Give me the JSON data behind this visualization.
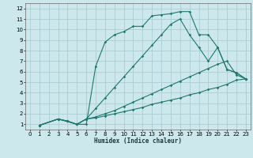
{
  "xlabel": "Humidex (Indice chaleur)",
  "background_color": "#cde8ec",
  "line_color": "#1a7a6e",
  "grid_color": "#aacdd4",
  "xlim": [
    -0.5,
    23.5
  ],
  "ylim": [
    0.5,
    12.5
  ],
  "xticks": [
    0,
    1,
    2,
    3,
    4,
    5,
    6,
    7,
    8,
    9,
    10,
    11,
    12,
    13,
    14,
    15,
    16,
    17,
    18,
    19,
    20,
    21,
    22,
    23
  ],
  "yticks": [
    1,
    2,
    3,
    4,
    5,
    6,
    7,
    8,
    9,
    10,
    11,
    12
  ],
  "lines": [
    {
      "x": [
        1,
        3,
        5,
        6,
        7,
        8,
        9,
        10,
        11,
        12,
        13,
        14,
        15,
        16,
        17,
        18,
        19,
        20,
        21,
        22,
        23
      ],
      "y": [
        0.9,
        1.5,
        1.0,
        1.0,
        6.5,
        8.8,
        9.5,
        9.8,
        10.3,
        10.3,
        11.3,
        11.4,
        11.5,
        11.7,
        11.7,
        9.5,
        9.5,
        8.3,
        6.2,
        5.9,
        5.3
      ]
    },
    {
      "x": [
        1,
        3,
        4,
        5,
        6,
        7,
        8,
        9,
        10,
        11,
        12,
        13,
        14,
        15,
        16,
        17,
        18,
        19,
        20,
        21,
        22,
        23
      ],
      "y": [
        0.9,
        1.5,
        1.3,
        1.0,
        1.5,
        2.5,
        3.5,
        4.5,
        5.5,
        6.5,
        7.5,
        8.5,
        9.5,
        10.5,
        11.0,
        9.5,
        8.3,
        7.0,
        8.3,
        6.2,
        5.9,
        5.3
      ]
    },
    {
      "x": [
        1,
        3,
        4,
        5,
        6,
        7,
        8,
        9,
        10,
        11,
        12,
        13,
        14,
        15,
        16,
        17,
        18,
        19,
        20,
        21,
        22,
        23
      ],
      "y": [
        0.9,
        1.5,
        1.3,
        1.0,
        1.5,
        1.7,
        2.0,
        2.3,
        2.7,
        3.1,
        3.5,
        3.9,
        4.3,
        4.7,
        5.1,
        5.5,
        5.9,
        6.3,
        6.7,
        7.0,
        5.7,
        5.3
      ]
    },
    {
      "x": [
        1,
        3,
        4,
        5,
        6,
        7,
        8,
        9,
        10,
        11,
        12,
        13,
        14,
        15,
        16,
        17,
        18,
        19,
        20,
        21,
        22,
        23
      ],
      "y": [
        0.9,
        1.5,
        1.3,
        1.0,
        1.5,
        1.6,
        1.8,
        2.0,
        2.2,
        2.4,
        2.6,
        2.9,
        3.1,
        3.3,
        3.5,
        3.8,
        4.0,
        4.3,
        4.5,
        4.8,
        5.2,
        5.3
      ]
    }
  ]
}
